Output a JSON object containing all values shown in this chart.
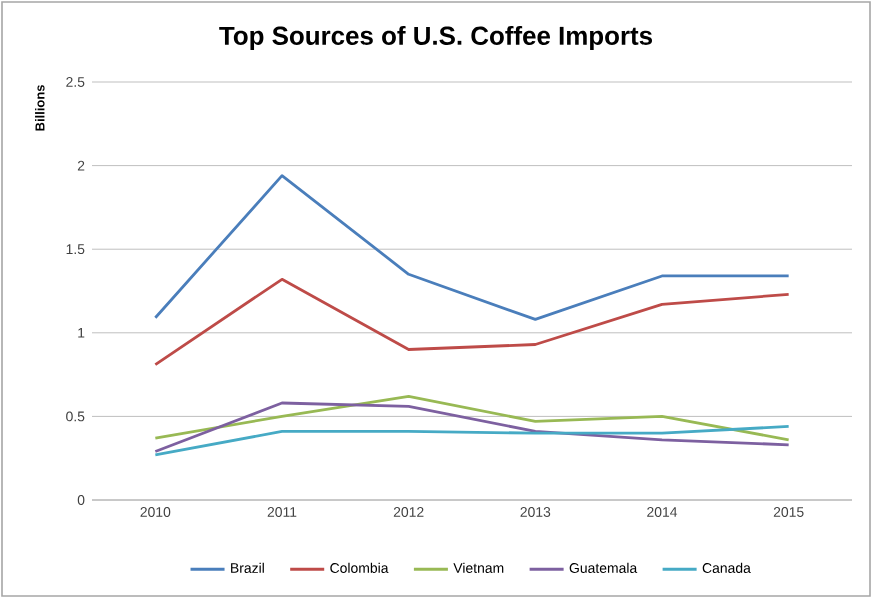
{
  "chart_data": {
    "type": "line",
    "title": "Top Sources of U.S. Coffee Imports",
    "ylabel": "Billions",
    "categories": [
      "2010",
      "2011",
      "2012",
      "2013",
      "2014",
      "2015"
    ],
    "series": [
      {
        "name": "Brazil",
        "color": "#4a7ebb",
        "values": [
          1.09,
          1.94,
          1.35,
          1.08,
          1.34,
          1.34
        ]
      },
      {
        "name": "Colombia",
        "color": "#be4b48",
        "values": [
          0.81,
          1.32,
          0.9,
          0.93,
          1.17,
          1.23
        ]
      },
      {
        "name": "Vietnam",
        "color": "#98b954",
        "values": [
          0.37,
          0.5,
          0.62,
          0.47,
          0.5,
          0.36
        ]
      },
      {
        "name": "Guatemala",
        "color": "#7d60a0",
        "values": [
          0.29,
          0.58,
          0.56,
          0.41,
          0.36,
          0.33
        ]
      },
      {
        "name": "Canada",
        "color": "#46aac5",
        "values": [
          0.27,
          0.41,
          0.41,
          0.4,
          0.4,
          0.44
        ]
      }
    ],
    "ylim": [
      0,
      2.5
    ],
    "yticks": [
      0,
      0.5,
      1,
      1.5,
      2,
      2.5
    ],
    "grid": "y",
    "legend": "bottom",
    "marker": "none",
    "line_style": "solid"
  }
}
